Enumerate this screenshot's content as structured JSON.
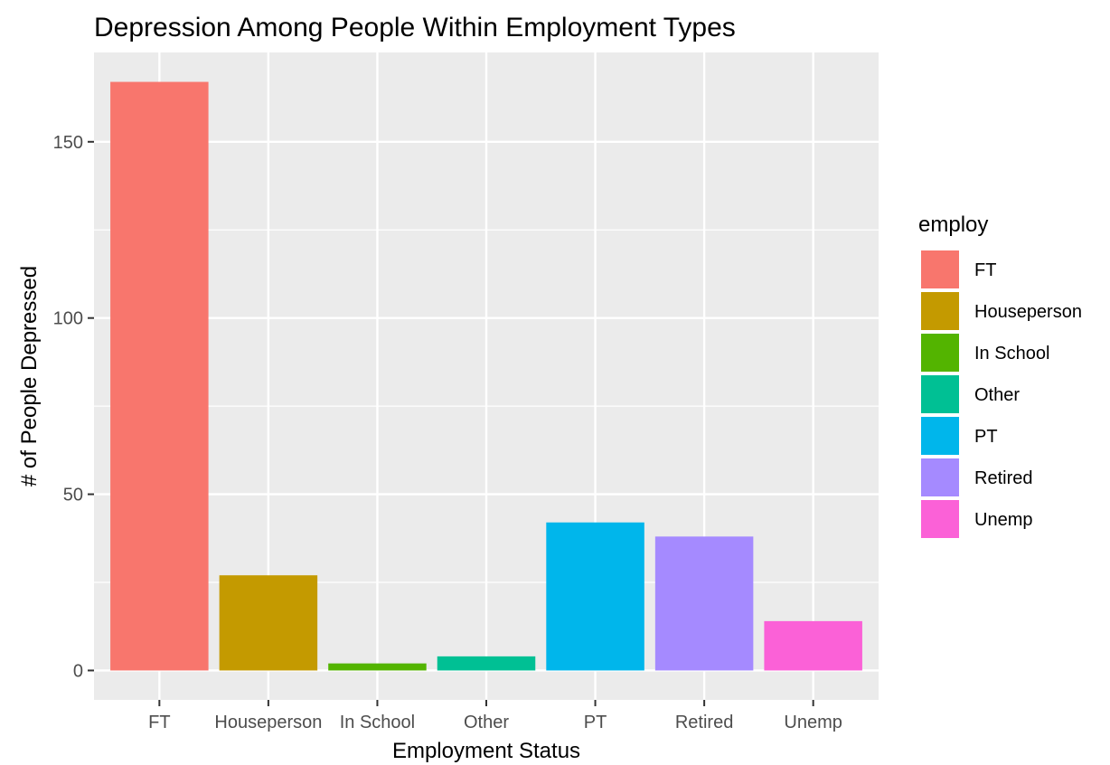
{
  "chart_data": {
    "type": "bar",
    "title": "Depression Among People Within Employment Types",
    "xlabel": "Employment Status",
    "ylabel": "# of People Depressed",
    "categories": [
      "FT",
      "Houseperson",
      "In School",
      "Other",
      "PT",
      "Retired",
      "Unemp"
    ],
    "values": [
      167,
      27,
      2,
      4,
      42,
      38,
      14
    ],
    "colors": [
      "#F8766D",
      "#C49A00",
      "#53B400",
      "#00C094",
      "#00B6EB",
      "#A58AFF",
      "#FB61D7"
    ],
    "y_ticks": [
      0,
      50,
      100,
      150
    ],
    "ylim": [
      -8.35,
      175.35
    ],
    "grid": true,
    "legend": {
      "title": "employ",
      "position": "right",
      "entries": [
        "FT",
        "Houseperson",
        "In School",
        "Other",
        "PT",
        "Retired",
        "Unemp"
      ]
    }
  }
}
